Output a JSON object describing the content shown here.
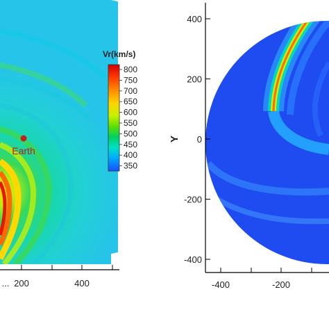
{
  "chart_data": [
    {
      "type": "heatmap",
      "panel": "left",
      "xlabel": "",
      "ylabel": "",
      "x_ticks": [
        "200",
        "400"
      ],
      "y_ticks": [],
      "colorbar": {
        "title": "Vr(km/s)",
        "ticks": [
          "800",
          "750",
          "700",
          "650",
          "600",
          "550",
          "500",
          "450",
          "400",
          "350"
        ],
        "colors": [
          "#d40000",
          "#ff3a00",
          "#ff8c00",
          "#ffd200",
          "#c8f000",
          "#5ee000",
          "#00d060",
          "#00e0c8",
          "#00a8ff",
          "#1450ff"
        ]
      },
      "annotations": [
        {
          "text": "Earth",
          "color": "#b51e1e"
        }
      ]
    },
    {
      "type": "heatmap",
      "panel": "right",
      "xlabel": "",
      "ylabel": "Y",
      "x_ticks": [
        "-400",
        "-200"
      ],
      "y_ticks": [
        "400",
        "200",
        "0",
        "-200",
        "-400"
      ]
    }
  ]
}
